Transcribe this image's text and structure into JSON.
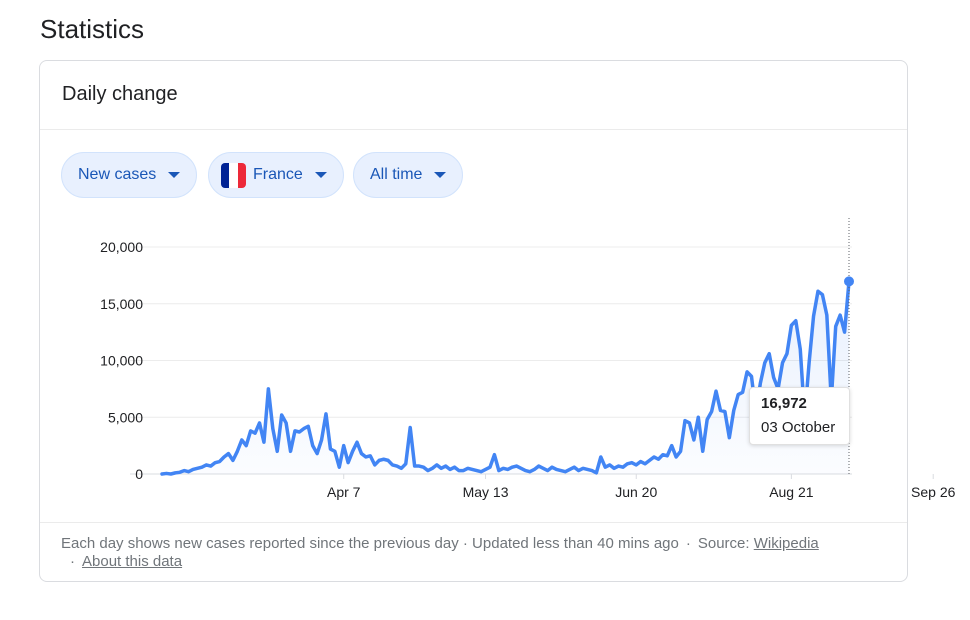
{
  "page": {
    "title": "Statistics"
  },
  "card": {
    "title": "Daily change"
  },
  "filters": {
    "metric": "New cases",
    "country": "France",
    "range": "All time",
    "flag_colors": [
      "#002395",
      "#ffffff",
      "#ed2939"
    ]
  },
  "chart_data": {
    "type": "line",
    "title": "",
    "xlabel": "",
    "ylabel": "",
    "ylim": [
      0,
      20000
    ],
    "y_ticks": [
      "0",
      "5,000",
      "10,000",
      "15,000",
      "20,000"
    ],
    "x_ticks": [
      "Apr 7",
      "May 13",
      "Jun 20",
      "Aug 21",
      "Sep 26"
    ],
    "grid": true,
    "line_color": "#4285f4",
    "series": [
      {
        "values": [
          0,
          50,
          0,
          100,
          150,
          300,
          200,
          400,
          500,
          600,
          800,
          700,
          1000,
          1100,
          1500,
          1800,
          1200,
          2000,
          3000,
          2500,
          3800,
          3600,
          4500,
          2800,
          7500,
          4000,
          2000,
          5200,
          4500,
          2000,
          3800,
          3700,
          4000,
          4200,
          2500,
          1800,
          3000,
          5300,
          2200,
          2000,
          600,
          2500,
          1000,
          2000,
          2800,
          1800,
          1500,
          1600,
          800,
          1200,
          1300,
          1200,
          800,
          700,
          500,
          900,
          4100,
          700,
          700,
          600,
          300,
          500,
          800,
          500,
          700,
          400,
          600,
          300,
          300,
          500,
          400,
          300,
          200,
          400,
          600,
          1700,
          300,
          500,
          400,
          600,
          700,
          500,
          300,
          200,
          400,
          700,
          500,
          300,
          600,
          400,
          300,
          200,
          400,
          600,
          300,
          500,
          400,
          300,
          100,
          1500,
          600,
          800,
          500,
          700,
          600,
          900,
          1000,
          800,
          1100,
          900,
          1200,
          1500,
          1300,
          1700,
          1600,
          2500,
          1500,
          2000,
          4700,
          4500,
          3000,
          5000,
          2000,
          4800,
          5500,
          7300,
          5600,
          5500,
          3200,
          5600,
          7000,
          7200,
          9000,
          8600,
          5400,
          8000,
          9800,
          10600,
          8500,
          7500,
          9800,
          10600,
          13100,
          13500,
          11000,
          5000,
          9800,
          13900,
          16100,
          15800,
          14000,
          6500,
          13000,
          14000,
          12500,
          16972
        ]
      }
    ],
    "tooltip": {
      "value": "16,972",
      "date": "03 October"
    }
  },
  "footer": {
    "description": "Each day shows new cases reported since the previous day · Updated less than 40 mins ago",
    "source_label": "Source:",
    "source_link": "Wikipedia",
    "about_link": "About this data",
    "separator": "·"
  }
}
